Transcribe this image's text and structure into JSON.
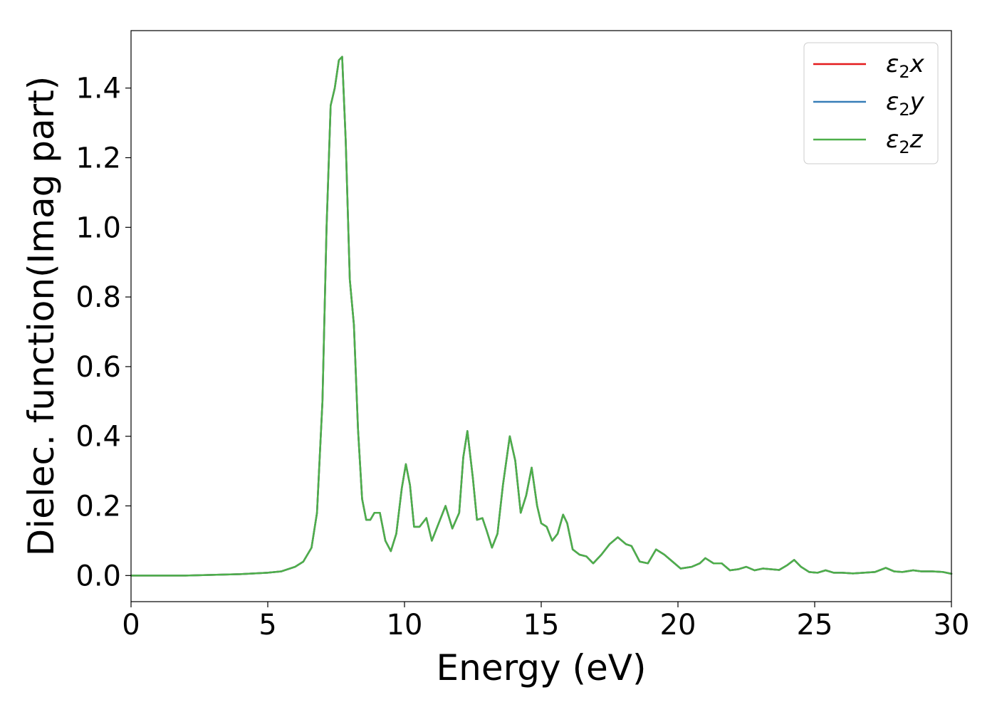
{
  "chart_data": {
    "type": "line",
    "title": "",
    "xlabel": "Energy (eV)",
    "ylabel": "Dielec. function(Imag part)",
    "xlim": [
      0,
      30
    ],
    "ylim": [
      -0.075,
      1.565
    ],
    "xticks": [
      0,
      5,
      10,
      15,
      20,
      25,
      30
    ],
    "xtick_labels": [
      "0",
      "5",
      "10",
      "15",
      "20",
      "25",
      "30"
    ],
    "yticks": [
      0.0,
      0.2,
      0.4,
      0.6,
      0.8,
      1.0,
      1.2,
      1.4
    ],
    "ytick_labels": [
      "0.0",
      "0.2",
      "0.4",
      "0.6",
      "0.8",
      "1.0",
      "1.2",
      "1.4"
    ],
    "grid": false,
    "legend_position": "top-right",
    "series": [
      {
        "name": "ε2x",
        "label_base": "ε",
        "label_sub": "2",
        "label_var": "x",
        "color": "#e41a1c",
        "x": [
          0,
          2,
          4,
          5,
          5.5,
          6,
          6.3,
          6.6,
          6.8,
          7.0,
          7.15,
          7.3,
          7.45,
          7.6,
          7.72,
          7.85,
          8.0,
          8.15,
          8.3,
          8.45,
          8.6,
          8.75,
          8.9,
          9.1,
          9.3,
          9.5,
          9.7,
          9.9,
          10.05,
          10.2,
          10.35,
          10.55,
          10.8,
          11.0,
          11.25,
          11.5,
          11.75,
          12.0,
          12.15,
          12.3,
          12.5,
          12.65,
          12.85,
          13.0,
          13.2,
          13.4,
          13.6,
          13.85,
          14.05,
          14.25,
          14.45,
          14.65,
          14.85,
          15.0,
          15.2,
          15.4,
          15.6,
          15.8,
          15.95,
          16.15,
          16.4,
          16.65,
          16.9,
          17.2,
          17.5,
          17.8,
          18.1,
          18.3,
          18.6,
          18.9,
          19.2,
          19.5,
          19.8,
          20.1,
          20.5,
          20.8,
          21.0,
          21.3,
          21.6,
          21.9,
          22.2,
          22.5,
          22.8,
          23.1,
          23.4,
          23.7,
          24.0,
          24.25,
          24.5,
          24.8,
          25.1,
          25.4,
          25.7,
          26.0,
          26.4,
          26.8,
          27.2,
          27.6,
          27.9,
          28.2,
          28.6,
          28.9,
          29.3,
          29.7,
          30.0
        ],
        "y": [
          0.0,
          0.0,
          0.004,
          0.008,
          0.012,
          0.025,
          0.04,
          0.08,
          0.18,
          0.5,
          1.0,
          1.35,
          1.4,
          1.48,
          1.49,
          1.25,
          0.85,
          0.72,
          0.42,
          0.22,
          0.16,
          0.16,
          0.18,
          0.18,
          0.1,
          0.07,
          0.12,
          0.25,
          0.32,
          0.26,
          0.14,
          0.14,
          0.165,
          0.1,
          0.15,
          0.2,
          0.135,
          0.18,
          0.34,
          0.415,
          0.28,
          0.16,
          0.165,
          0.13,
          0.08,
          0.12,
          0.26,
          0.4,
          0.33,
          0.18,
          0.23,
          0.31,
          0.2,
          0.15,
          0.14,
          0.1,
          0.12,
          0.175,
          0.15,
          0.075,
          0.06,
          0.055,
          0.035,
          0.06,
          0.09,
          0.11,
          0.09,
          0.085,
          0.04,
          0.035,
          0.075,
          0.06,
          0.04,
          0.02,
          0.025,
          0.035,
          0.05,
          0.035,
          0.035,
          0.015,
          0.018,
          0.025,
          0.015,
          0.02,
          0.018,
          0.016,
          0.03,
          0.045,
          0.025,
          0.01,
          0.008,
          0.015,
          0.008,
          0.008,
          0.006,
          0.008,
          0.01,
          0.022,
          0.012,
          0.01,
          0.015,
          0.012,
          0.012,
          0.01,
          0.005
        ]
      },
      {
        "name": "ε2y",
        "label_base": "ε",
        "label_sub": "2",
        "label_var": "y",
        "color": "#377eb8",
        "x": [
          0,
          2,
          4,
          5,
          5.5,
          6,
          6.3,
          6.6,
          6.8,
          7.0,
          7.15,
          7.3,
          7.45,
          7.6,
          7.72,
          7.85,
          8.0,
          8.15,
          8.3,
          8.45,
          8.6,
          8.75,
          8.9,
          9.1,
          9.3,
          9.5,
          9.7,
          9.9,
          10.05,
          10.2,
          10.35,
          10.55,
          10.8,
          11.0,
          11.25,
          11.5,
          11.75,
          12.0,
          12.15,
          12.3,
          12.5,
          12.65,
          12.85,
          13.0,
          13.2,
          13.4,
          13.6,
          13.85,
          14.05,
          14.25,
          14.45,
          14.65,
          14.85,
          15.0,
          15.2,
          15.4,
          15.6,
          15.8,
          15.95,
          16.15,
          16.4,
          16.65,
          16.9,
          17.2,
          17.5,
          17.8,
          18.1,
          18.3,
          18.6,
          18.9,
          19.2,
          19.5,
          19.8,
          20.1,
          20.5,
          20.8,
          21.0,
          21.3,
          21.6,
          21.9,
          22.2,
          22.5,
          22.8,
          23.1,
          23.4,
          23.7,
          24.0,
          24.25,
          24.5,
          24.8,
          25.1,
          25.4,
          25.7,
          26.0,
          26.4,
          26.8,
          27.2,
          27.6,
          27.9,
          28.2,
          28.6,
          28.9,
          29.3,
          29.7,
          30.0
        ],
        "y": [
          0.0,
          0.0,
          0.004,
          0.008,
          0.012,
          0.025,
          0.04,
          0.08,
          0.18,
          0.5,
          1.0,
          1.35,
          1.4,
          1.48,
          1.49,
          1.25,
          0.85,
          0.72,
          0.42,
          0.22,
          0.16,
          0.16,
          0.18,
          0.18,
          0.1,
          0.07,
          0.12,
          0.25,
          0.32,
          0.26,
          0.14,
          0.14,
          0.165,
          0.1,
          0.15,
          0.2,
          0.135,
          0.18,
          0.34,
          0.415,
          0.28,
          0.16,
          0.165,
          0.13,
          0.08,
          0.12,
          0.26,
          0.4,
          0.33,
          0.18,
          0.23,
          0.31,
          0.2,
          0.15,
          0.14,
          0.1,
          0.12,
          0.175,
          0.15,
          0.075,
          0.06,
          0.055,
          0.035,
          0.06,
          0.09,
          0.11,
          0.09,
          0.085,
          0.04,
          0.035,
          0.075,
          0.06,
          0.04,
          0.02,
          0.025,
          0.035,
          0.05,
          0.035,
          0.035,
          0.015,
          0.018,
          0.025,
          0.015,
          0.02,
          0.018,
          0.016,
          0.03,
          0.045,
          0.025,
          0.01,
          0.008,
          0.015,
          0.008,
          0.008,
          0.006,
          0.008,
          0.01,
          0.022,
          0.012,
          0.01,
          0.015,
          0.012,
          0.012,
          0.01,
          0.005
        ]
      },
      {
        "name": "ε2z",
        "label_base": "ε",
        "label_sub": "2",
        "label_var": "z",
        "color": "#4daf4a",
        "x": [
          0,
          2,
          4,
          5,
          5.5,
          6,
          6.3,
          6.6,
          6.8,
          7.0,
          7.15,
          7.3,
          7.45,
          7.6,
          7.72,
          7.85,
          8.0,
          8.15,
          8.3,
          8.45,
          8.6,
          8.75,
          8.9,
          9.1,
          9.3,
          9.5,
          9.7,
          9.9,
          10.05,
          10.2,
          10.35,
          10.55,
          10.8,
          11.0,
          11.25,
          11.5,
          11.75,
          12.0,
          12.15,
          12.3,
          12.5,
          12.65,
          12.85,
          13.0,
          13.2,
          13.4,
          13.6,
          13.85,
          14.05,
          14.25,
          14.45,
          14.65,
          14.85,
          15.0,
          15.2,
          15.4,
          15.6,
          15.8,
          15.95,
          16.15,
          16.4,
          16.65,
          16.9,
          17.2,
          17.5,
          17.8,
          18.1,
          18.3,
          18.6,
          18.9,
          19.2,
          19.5,
          19.8,
          20.1,
          20.5,
          20.8,
          21.0,
          21.3,
          21.6,
          21.9,
          22.2,
          22.5,
          22.8,
          23.1,
          23.4,
          23.7,
          24.0,
          24.25,
          24.5,
          24.8,
          25.1,
          25.4,
          25.7,
          26.0,
          26.4,
          26.8,
          27.2,
          27.6,
          27.9,
          28.2,
          28.6,
          28.9,
          29.3,
          29.7,
          30.0
        ],
        "y": [
          0.0,
          0.0,
          0.004,
          0.008,
          0.012,
          0.025,
          0.04,
          0.08,
          0.18,
          0.5,
          1.0,
          1.35,
          1.4,
          1.48,
          1.49,
          1.25,
          0.85,
          0.72,
          0.42,
          0.22,
          0.16,
          0.16,
          0.18,
          0.18,
          0.1,
          0.07,
          0.12,
          0.25,
          0.32,
          0.26,
          0.14,
          0.14,
          0.165,
          0.1,
          0.15,
          0.2,
          0.135,
          0.18,
          0.34,
          0.415,
          0.28,
          0.16,
          0.165,
          0.13,
          0.08,
          0.12,
          0.26,
          0.4,
          0.33,
          0.18,
          0.23,
          0.31,
          0.2,
          0.15,
          0.14,
          0.1,
          0.12,
          0.175,
          0.15,
          0.075,
          0.06,
          0.055,
          0.035,
          0.06,
          0.09,
          0.11,
          0.09,
          0.085,
          0.04,
          0.035,
          0.075,
          0.06,
          0.04,
          0.02,
          0.025,
          0.035,
          0.05,
          0.035,
          0.035,
          0.015,
          0.018,
          0.025,
          0.015,
          0.02,
          0.018,
          0.016,
          0.03,
          0.045,
          0.025,
          0.01,
          0.008,
          0.015,
          0.008,
          0.008,
          0.006,
          0.008,
          0.01,
          0.022,
          0.012,
          0.01,
          0.015,
          0.012,
          0.012,
          0.01,
          0.005
        ]
      }
    ]
  }
}
